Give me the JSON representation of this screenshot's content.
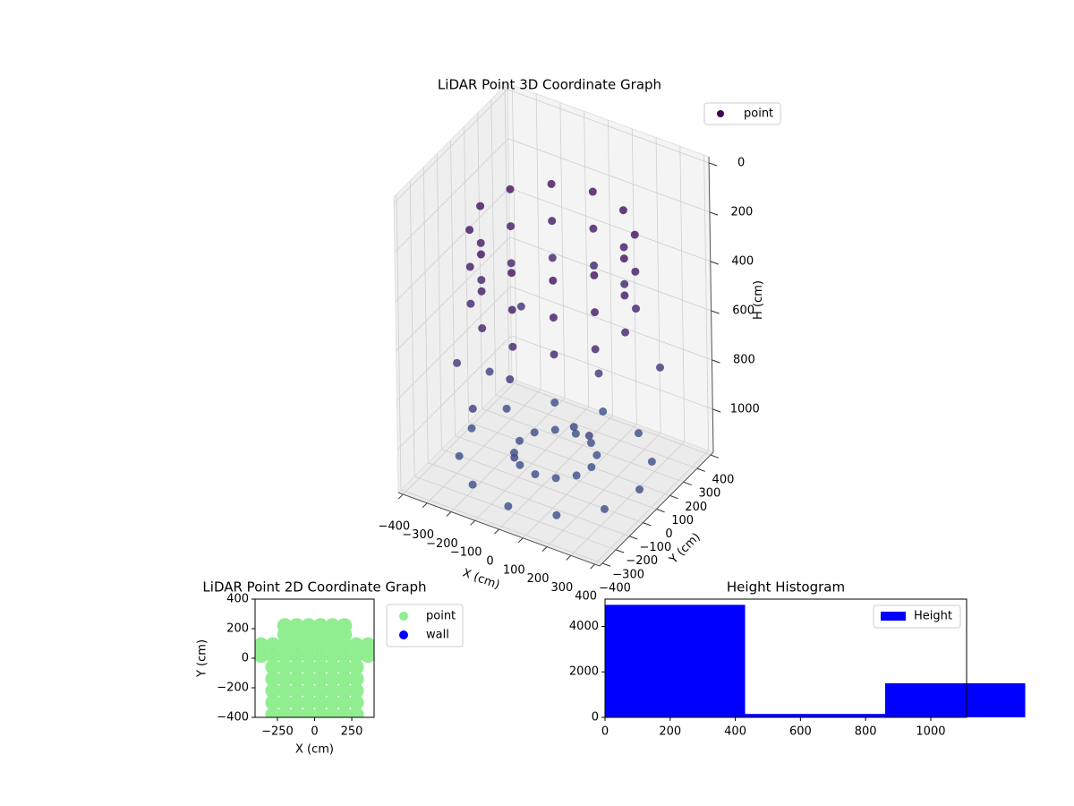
{
  "chart_data": [
    {
      "type": "scatter3d",
      "title": "LiDAR Point 3D Coordinate Graph",
      "xlabel": "X (cm)",
      "ylabel": "Y (cm)",
      "zlabel": "H (cm)",
      "xlim": [
        -420,
        420
      ],
      "ylim": [
        -420,
        420
      ],
      "zlim": [
        1175,
        -25
      ],
      "xticks": [
        {
          "value": -400,
          "label": "−400"
        },
        {
          "value": -300,
          "label": "−300"
        },
        {
          "value": -200,
          "label": "−200"
        },
        {
          "value": -100,
          "label": "−100"
        },
        0,
        100,
        200,
        300,
        400
      ],
      "yticks": [
        {
          "value": -400,
          "label": "−400"
        },
        {
          "value": -300,
          "label": "−300"
        },
        {
          "value": -200,
          "label": "−200"
        },
        {
          "value": -100,
          "label": "−100"
        },
        0,
        100,
        200,
        300,
        400
      ],
      "zticks": [
        0,
        200,
        400,
        600,
        800,
        1000
      ],
      "grid": true,
      "legend": "upper right",
      "colormap": [
        "#440154",
        "#3b528b"
      ],
      "series": [
        {
          "name": "point",
          "color": "#440154",
          "x": [
            300,
            260,
            150,
            0,
            -150,
            -260,
            -300,
            -260,
            -150,
            0,
            150,
            260,
            300,
            260,
            150,
            0,
            -150,
            -260,
            -300,
            -260,
            -150,
            0,
            150,
            260,
            300,
            260,
            150,
            0,
            -150,
            -260,
            -300,
            -260,
            -150,
            0,
            150,
            260,
            -350,
            -300,
            -200,
            -100,
            0,
            100,
            200,
            -250,
            300,
            50,
            150,
            130,
            75,
            0,
            -75,
            -130,
            -150,
            -130,
            -75,
            0,
            75,
            130,
            350,
            303,
            175,
            0,
            -175,
            -303,
            -350,
            -303,
            -175,
            0,
            175,
            303
          ],
          "y": [
            0,
            150,
            260,
            300,
            260,
            150,
            0,
            -150,
            -260,
            -300,
            -260,
            -150,
            0,
            150,
            260,
            300,
            260,
            150,
            0,
            -150,
            -260,
            -300,
            -260,
            -150,
            0,
            150,
            260,
            300,
            260,
            150,
            0,
            -150,
            -260,
            -300,
            -260,
            -150,
            -100,
            50,
            -250,
            -150,
            -300,
            150,
            -100,
            200,
            250,
            50,
            0,
            75,
            130,
            150,
            130,
            75,
            0,
            -75,
            -130,
            -150,
            -130,
            -75,
            0,
            175,
            303,
            350,
            303,
            175,
            0,
            -175,
            -303,
            -350,
            -303,
            -175
          ],
          "z": [
            200,
            200,
            200,
            200,
            200,
            200,
            200,
            200,
            200,
            200,
            200,
            200,
            350,
            350,
            350,
            350,
            350,
            350,
            350,
            350,
            350,
            350,
            350,
            350,
            500,
            500,
            500,
            500,
            500,
            500,
            500,
            500,
            500,
            500,
            500,
            500,
            800,
            900,
            850,
            750,
            950,
            820,
            900,
            700,
            780,
            1000,
            1100,
            1100,
            1100,
            1100,
            1100,
            1100,
            1100,
            1100,
            1100,
            1100,
            1100,
            1100,
            1120,
            1120,
            1120,
            1120,
            1120,
            1120,
            1120,
            1120,
            1120,
            1120,
            1120,
            1120
          ]
        }
      ]
    },
    {
      "type": "scatter",
      "title": "LiDAR Point 2D Coordinate Graph",
      "xlabel": "X (cm)",
      "ylabel": "Y (cm)",
      "xlim": [
        -400,
        400
      ],
      "ylim": [
        -400,
        400
      ],
      "xticks": [
        {
          "value": -250,
          "label": "−250"
        },
        0,
        250
      ],
      "yticks": [
        {
          "value": -400,
          "label": "−400"
        },
        {
          "value": -200,
          "label": "−200"
        },
        0,
        200,
        400
      ],
      "legend": "outside right",
      "series": [
        {
          "name": "point",
          "color": "#90ee90",
          "x": [
            -280,
            -200,
            -120,
            -40,
            40,
            120,
            200,
            280,
            -280,
            -200,
            -120,
            -40,
            40,
            120,
            200,
            280,
            -280,
            -200,
            -120,
            -40,
            40,
            120,
            200,
            280,
            -280,
            -200,
            -120,
            -40,
            40,
            120,
            200,
            280,
            -280,
            -200,
            -120,
            -40,
            40,
            120,
            200,
            280,
            -360,
            -280,
            -200,
            -120,
            -40,
            40,
            120,
            200,
            280,
            360,
            -360,
            -280,
            -200,
            -120,
            -40,
            40,
            120,
            200,
            280,
            360,
            -200,
            -120,
            -40,
            40,
            120,
            200,
            -200,
            -120,
            -40,
            40,
            120,
            200
          ],
          "y": [
            -380,
            -380,
            -380,
            -380,
            -380,
            -380,
            -380,
            -380,
            -300,
            -300,
            -300,
            -300,
            -300,
            -300,
            -300,
            -300,
            -220,
            -220,
            -220,
            -220,
            -220,
            -220,
            -220,
            -220,
            -140,
            -140,
            -140,
            -140,
            -140,
            -140,
            -140,
            -140,
            -60,
            -60,
            -60,
            -60,
            -60,
            -60,
            -60,
            -60,
            20,
            20,
            20,
            20,
            20,
            20,
            20,
            20,
            20,
            20,
            90,
            90,
            90,
            90,
            90,
            90,
            90,
            90,
            90,
            90,
            160,
            160,
            160,
            160,
            160,
            160,
            220,
            220,
            220,
            220,
            220,
            220
          ]
        },
        {
          "name": "wall",
          "color": "#0000ff",
          "x": [],
          "y": []
        }
      ]
    },
    {
      "type": "histogram",
      "title": "Height Histogram",
      "bins": [
        0,
        430,
        860,
        1290
      ],
      "xlim": [
        0,
        1110
      ],
      "ylim": [
        0,
        5200
      ],
      "xticks": [
        0,
        200,
        400,
        600,
        800,
        1000
      ],
      "yticks": [
        0,
        2000,
        4000
      ],
      "legend": "upper right",
      "series": [
        {
          "name": "Height",
          "color": "#0000ff",
          "values": [
            4950,
            150,
            1500
          ]
        }
      ]
    }
  ]
}
